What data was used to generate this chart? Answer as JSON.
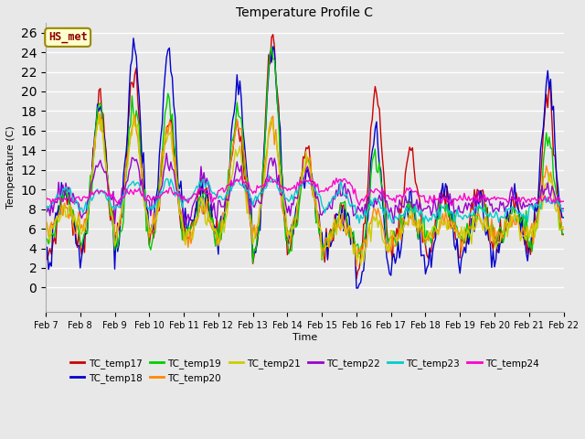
{
  "title": "Temperature Profile C",
  "xlabel": "Time",
  "ylabel": "Temperature (C)",
  "ylim": [
    -2.5,
    27
  ],
  "yticks": [
    0,
    2,
    4,
    6,
    8,
    10,
    12,
    14,
    16,
    18,
    20,
    22,
    24,
    26
  ],
  "xlim": [
    0,
    360
  ],
  "series_names": [
    "TC_temp17",
    "TC_temp18",
    "TC_temp19",
    "TC_temp20",
    "TC_temp21",
    "TC_temp22",
    "TC_temp23",
    "TC_temp24"
  ],
  "series_colors": [
    "#cc0000",
    "#0000cc",
    "#00cc00",
    "#ff8800",
    "#cccc00",
    "#9900cc",
    "#00cccc",
    "#ff00cc"
  ],
  "annotation_text": "HS_met",
  "annotation_bg": "#ffffcc",
  "annotation_border": "#998800",
  "plot_bg": "#e8e8e8",
  "grid_color": "#ffffff",
  "n_points": 361,
  "x_tick_labels": [
    "Feb 7",
    "Feb 8",
    "Feb 9",
    "Feb 10",
    "Feb 11",
    "Feb 12",
    "Feb 13",
    "Feb 14",
    "Feb 15",
    "Feb 16",
    "Feb 17",
    "Feb 18",
    "Feb 19",
    "Feb 20",
    "Feb 21",
    "Feb 22"
  ],
  "x_tick_positions": [
    0,
    24,
    48,
    72,
    96,
    120,
    144,
    168,
    192,
    216,
    240,
    264,
    288,
    312,
    336,
    360
  ]
}
